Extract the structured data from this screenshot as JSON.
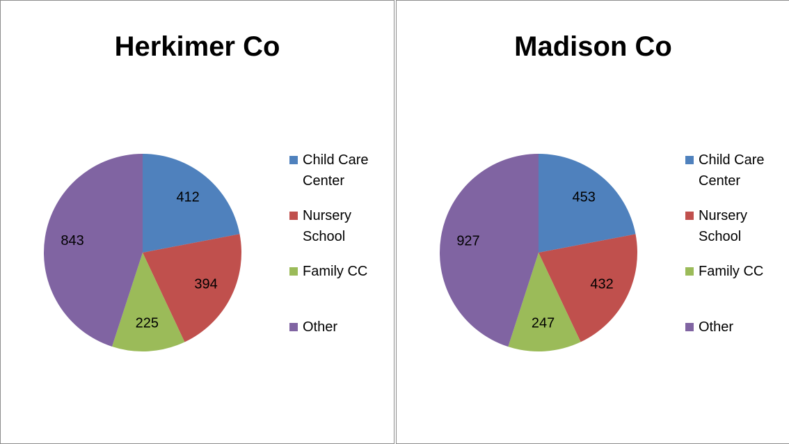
{
  "chart_data": [
    {
      "type": "pie",
      "title": "Herkimer Co",
      "categories": [
        "Child Care Center",
        "Nursery School",
        "Family CC",
        "Other"
      ],
      "values": [
        412,
        394,
        225,
        843
      ],
      "colors": [
        "#4f81bd",
        "#c0504d",
        "#9bbb59",
        "#8064a2"
      ],
      "legend": "right"
    },
    {
      "type": "pie",
      "title": "Madison Co",
      "categories": [
        "Child Care Center",
        "Nursery School",
        "Family CC",
        "Other"
      ],
      "values": [
        453,
        432,
        247,
        927
      ],
      "colors": [
        "#4f81bd",
        "#c0504d",
        "#9bbb59",
        "#8064a2"
      ],
      "legend": "right"
    }
  ]
}
